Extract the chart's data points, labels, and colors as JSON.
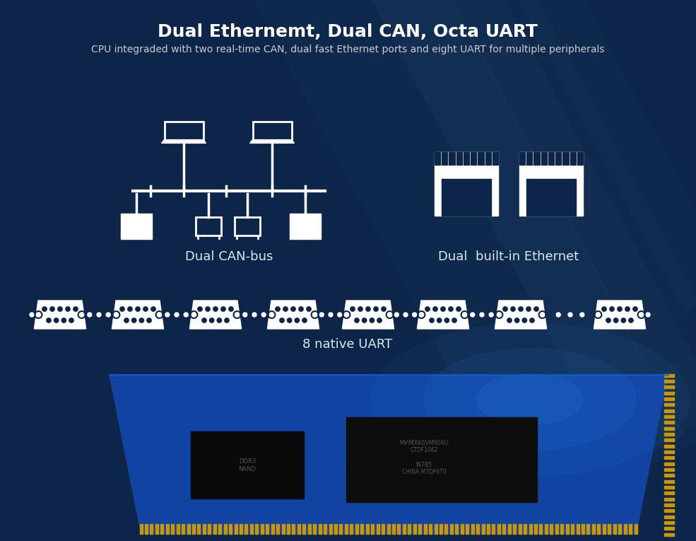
{
  "title": "Dual Ethernemt, Dual CAN, Octa UART",
  "subtitle": "CPU integraded with two real-time CAN, dual fast Ethernet ports and eight UART for multiple peripherals",
  "title_color": "#ffffff",
  "subtitle_color": "#cccccc",
  "bg_color": "#0d2548",
  "bg_color2": "#081c3a",
  "label_can": "Dual CAN-bus",
  "label_eth": "Dual  built-in Ethernet",
  "label_uart": "8 native UART",
  "icon_color": "#ffffff",
  "label_color": "#dce8f0",
  "title_fontsize": 18,
  "subtitle_fontsize": 10,
  "label_fontsize": 13
}
